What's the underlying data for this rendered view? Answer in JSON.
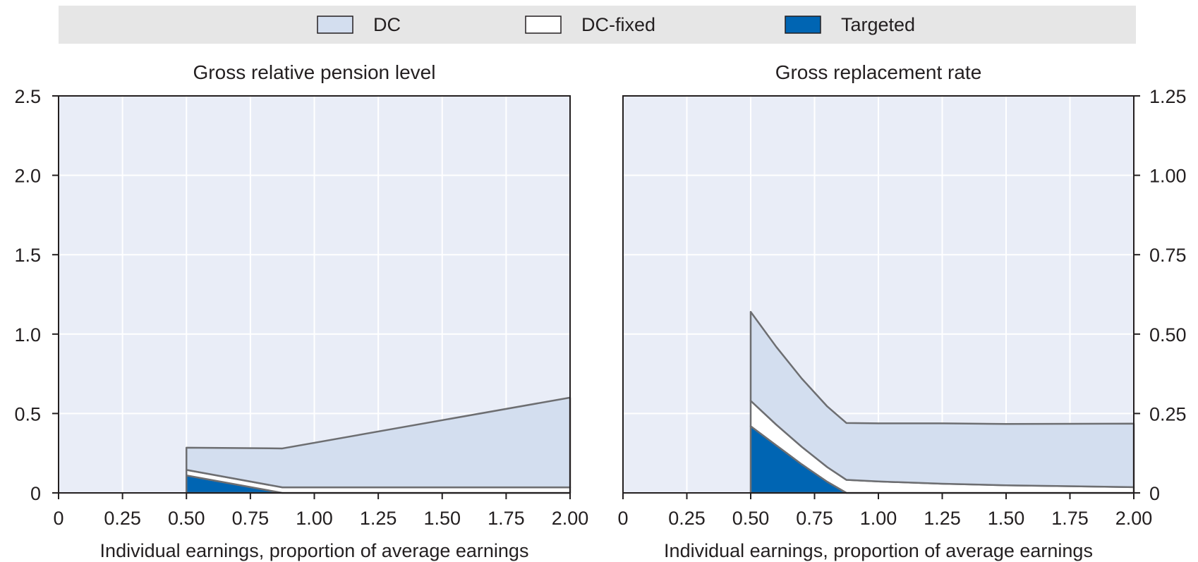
{
  "legend": {
    "items": [
      {
        "label": "DC",
        "color": "#d3deef"
      },
      {
        "label": "DC-fixed",
        "color": "#ffffff"
      },
      {
        "label": "Targeted",
        "color": "#0065b3"
      }
    ]
  },
  "colors": {
    "plot_background": "#e9edf7",
    "legend_background": "#e6e6e6",
    "outline": "#231f20",
    "area_edge": "#6d6e71",
    "grid": "#ffffff"
  },
  "chart_data": [
    {
      "type": "area",
      "stacked": true,
      "title": "Gross relative pension level",
      "xlabel": "Individual earnings, proportion of average earnings",
      "ylabel": "",
      "xlim": [
        0,
        2.0
      ],
      "ylim": [
        0,
        2.5
      ],
      "xticks": [
        "0",
        "0.25",
        "0.50",
        "0.75",
        "1.00",
        "1.25",
        "1.50",
        "1.75",
        "2.00"
      ],
      "yticks": [
        "0",
        "0.5",
        "1.0",
        "1.5",
        "2.0",
        "2.5"
      ],
      "y_axis_side": "left",
      "grid": true,
      "x": [
        0.5,
        0.875,
        2.0
      ],
      "series": [
        {
          "name": "Targeted",
          "values": [
            0.11,
            0.0,
            0.0
          ]
        },
        {
          "name": "DC-fixed",
          "values": [
            0.035,
            0.035,
            0.035
          ]
        },
        {
          "name": "DC",
          "values": [
            0.14,
            0.245,
            0.565
          ]
        }
      ]
    },
    {
      "type": "area",
      "stacked": true,
      "title": "Gross replacement rate",
      "xlabel": "Individual earnings, proportion of average earnings",
      "ylabel": "",
      "xlim": [
        0,
        2.0
      ],
      "ylim": [
        0,
        1.25
      ],
      "xticks": [
        "0",
        "0.25",
        "0.50",
        "0.75",
        "1.00",
        "1.25",
        "1.50",
        "1.75",
        "2.00"
      ],
      "yticks": [
        "0",
        "0.25",
        "0.50",
        "0.75",
        "1.00",
        "1.25"
      ],
      "y_axis_side": "right",
      "grid": true,
      "x": [
        0.5,
        0.6,
        0.7,
        0.8,
        0.875,
        1.0,
        1.25,
        1.5,
        2.0
      ],
      "series": [
        {
          "name": "Targeted",
          "values": [
            0.21,
            0.15,
            0.09,
            0.035,
            0.0,
            0.0,
            0.0,
            0.0,
            0.0
          ]
        },
        {
          "name": "DC-fixed",
          "values": [
            0.08,
            0.065,
            0.055,
            0.046,
            0.041,
            0.036,
            0.029,
            0.024,
            0.018
          ]
        },
        {
          "name": "DC",
          "values": [
            0.28,
            0.245,
            0.215,
            0.191,
            0.179,
            0.183,
            0.19,
            0.193,
            0.2
          ]
        }
      ]
    }
  ]
}
